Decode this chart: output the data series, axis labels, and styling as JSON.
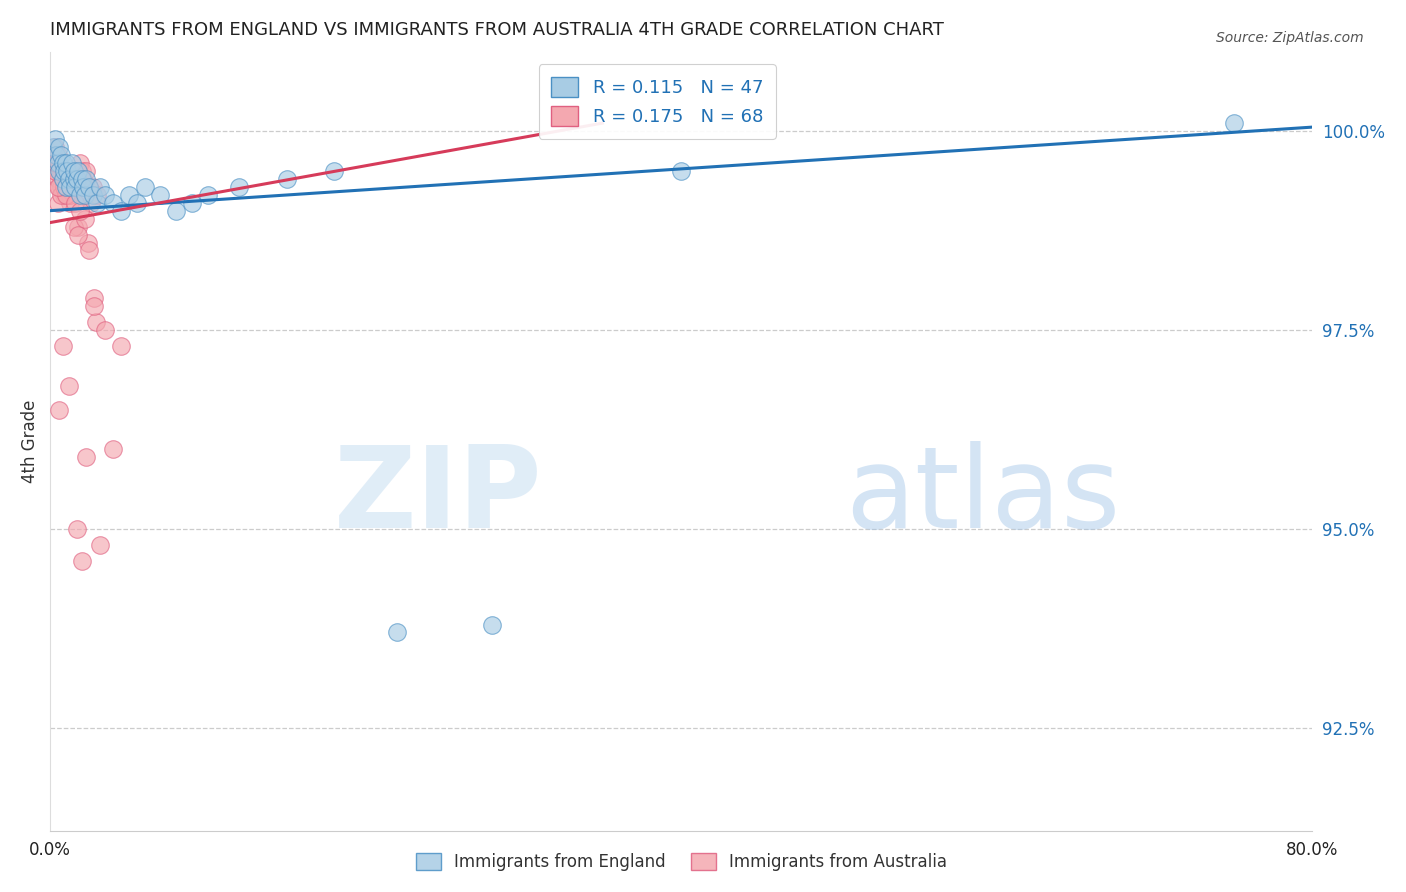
{
  "title": "IMMIGRANTS FROM ENGLAND VS IMMIGRANTS FROM AUSTRALIA 4TH GRADE CORRELATION CHART",
  "source": "Source: ZipAtlas.com",
  "ylabel": "4th Grade",
  "legend_label_blue": "Immigrants from England",
  "legend_label_pink": "Immigrants from Australia",
  "R_blue": 0.115,
  "N_blue": 47,
  "R_pink": 0.175,
  "N_pink": 68,
  "xmin": 0.0,
  "xmax": 80.0,
  "ymin": 91.2,
  "ymax": 101.0,
  "yticks": [
    92.5,
    95.0,
    97.5,
    100.0
  ],
  "xtick_positions": [
    0.0,
    10.0,
    20.0,
    30.0,
    40.0,
    50.0,
    60.0,
    70.0,
    80.0
  ],
  "blue_fill": "#a8cce4",
  "pink_fill": "#f4a8b0",
  "blue_edge": "#4a90c4",
  "pink_edge": "#e06080",
  "blue_line": "#2171b5",
  "pink_line": "#d63b5a",
  "blue_scatter_x": [
    0.2,
    0.3,
    0.4,
    0.5,
    0.6,
    0.6,
    0.7,
    0.8,
    0.8,
    0.9,
    1.0,
    1.0,
    1.1,
    1.2,
    1.3,
    1.4,
    1.5,
    1.5,
    1.6,
    1.7,
    1.8,
    1.9,
    2.0,
    2.1,
    2.2,
    2.3,
    2.5,
    2.7,
    3.0,
    3.2,
    3.5,
    4.0,
    4.5,
    5.0,
    5.5,
    6.0,
    7.0,
    8.0,
    9.0,
    10.0,
    12.0,
    15.0,
    18.0,
    22.0,
    28.0,
    40.0,
    75.0
  ],
  "blue_scatter_y": [
    99.8,
    99.9,
    99.7,
    99.6,
    99.8,
    99.5,
    99.7,
    99.6,
    99.4,
    99.5,
    99.6,
    99.3,
    99.5,
    99.4,
    99.3,
    99.6,
    99.4,
    99.5,
    99.3,
    99.4,
    99.5,
    99.2,
    99.4,
    99.3,
    99.2,
    99.4,
    99.3,
    99.2,
    99.1,
    99.3,
    99.2,
    99.1,
    99.0,
    99.2,
    99.1,
    99.3,
    99.2,
    99.0,
    99.1,
    99.2,
    99.3,
    99.4,
    99.5,
    93.7,
    93.8,
    99.5,
    100.1
  ],
  "pink_scatter_x": [
    0.2,
    0.3,
    0.3,
    0.4,
    0.5,
    0.5,
    0.6,
    0.7,
    0.7,
    0.8,
    0.8,
    0.9,
    1.0,
    1.0,
    1.1,
    1.2,
    1.3,
    1.3,
    1.4,
    1.5,
    1.5,
    1.6,
    1.7,
    1.8,
    1.9,
    2.0,
    2.0,
    2.1,
    2.2,
    2.3,
    2.4,
    2.5,
    2.6,
    2.7,
    2.8,
    2.9,
    1.0,
    1.1,
    1.2,
    1.3,
    0.5,
    0.6,
    0.7,
    0.8,
    0.9,
    1.0,
    2.0,
    2.5,
    3.0,
    3.5,
    4.0,
    4.5,
    1.5,
    1.8,
    2.2,
    0.3,
    0.4,
    2.8,
    1.6,
    1.9,
    0.8,
    1.2,
    0.6,
    2.3,
    1.7,
    3.2,
    2.0,
    0.5
  ],
  "pink_scatter_y": [
    99.7,
    99.8,
    99.6,
    99.5,
    99.7,
    99.4,
    99.6,
    99.5,
    99.3,
    99.5,
    99.4,
    99.2,
    99.5,
    99.3,
    99.4,
    99.2,
    99.1,
    99.5,
    99.3,
    99.4,
    99.5,
    99.3,
    99.4,
    98.8,
    99.6,
    99.5,
    99.3,
    99.4,
    99.2,
    99.5,
    98.6,
    98.5,
    99.1,
    99.3,
    97.9,
    97.6,
    99.2,
    99.3,
    99.4,
    99.2,
    99.1,
    99.3,
    99.2,
    99.4,
    99.3,
    99.2,
    99.4,
    99.3,
    99.2,
    97.5,
    96.0,
    97.3,
    98.8,
    98.7,
    98.9,
    99.5,
    99.6,
    97.8,
    99.1,
    99.0,
    97.3,
    96.8,
    96.5,
    95.9,
    95.0,
    94.8,
    94.6,
    99.3
  ],
  "watermark_zip_color": "#c8dff2",
  "watermark_atlas_color": "#a0c4e8"
}
